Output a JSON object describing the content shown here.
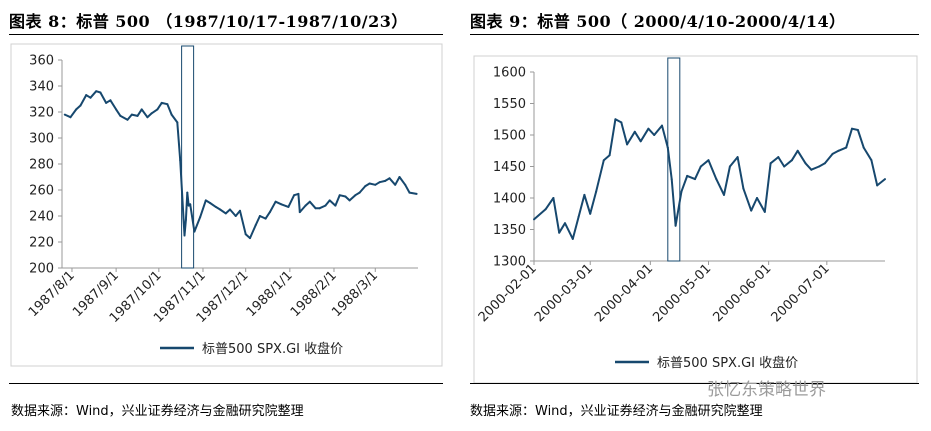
{
  "left": {
    "title": "图表 8：标普 500 （1987/10/17-1987/10/23）",
    "source": "数据来源：Wind，兴业证券经济与金融研究院整理"
  },
  "right": {
    "title": "图表 9：标普 500（ 2000/4/10-2000/4/14）",
    "source": "数据来源：Wind，兴业证券经济与金融研究院整理"
  },
  "watermark": "张忆东策略世界",
  "colors": {
    "line": "#17486e",
    "axis": "#999999",
    "frame": "#8aa0b4"
  },
  "chart_data": [
    {
      "type": "line",
      "title": "图表 8：标普 500 （1987/10/17-1987/10/23）",
      "x_ticks": [
        "1987/8/1",
        "1987/9/1",
        "1987/10/1",
        "1987/11/1",
        "1987/12/1",
        "1988/1/1",
        "1988/2/1",
        "1988/3/1"
      ],
      "xlim": [
        "1987/7/25",
        "1988/3/31"
      ],
      "ylim": [
        200,
        360
      ],
      "y_ticks": [
        200,
        220,
        240,
        260,
        280,
        300,
        320,
        340,
        360
      ],
      "grid": false,
      "legend": "bottom",
      "highlight": [
        "1987/10/17",
        "1987/10/23"
      ],
      "series": [
        {
          "name": "标普500 SPX.GI 收盘价",
          "x": [
            "1987/7/27",
            "1987/7/31",
            "1987/8/4",
            "1987/8/7",
            "1987/8/11",
            "1987/8/14",
            "1987/8/18",
            "1987/8/21",
            "1987/8/25",
            "1987/8/28",
            "1987/9/1",
            "1987/9/4",
            "1987/9/9",
            "1987/9/12",
            "1987/9/16",
            "1987/9/19",
            "1987/9/23",
            "1987/9/26",
            "1987/9/30",
            "1987/10/3",
            "1987/10/7",
            "1987/10/10",
            "1987/10/14",
            "1987/10/16",
            "1987/10/19",
            "1987/10/20",
            "1987/10/21",
            "1987/10/22",
            "1987/10/23",
            "1987/10/26",
            "1987/10/30",
            "1987/11/3",
            "1987/11/6",
            "1987/11/10",
            "1987/11/13",
            "1987/11/17",
            "1987/11/20",
            "1987/11/24",
            "1987/11/27",
            "1987/12/1",
            "1987/12/4",
            "1987/12/8",
            "1987/12/11",
            "1987/12/15",
            "1987/12/18",
            "1987/12/22",
            "1987/12/26",
            "1987/12/31",
            "1988/1/4",
            "1988/1/7",
            "1988/1/8",
            "1988/1/12",
            "1988/1/15",
            "1988/1/19",
            "1988/1/22",
            "1988/1/26",
            "1988/1/29",
            "1988/2/2",
            "1988/2/5",
            "1988/2/9",
            "1988/2/12",
            "1988/2/16",
            "1988/2/19",
            "1988/2/23",
            "1988/2/26",
            "1988/3/1",
            "1988/3/4",
            "1988/3/8",
            "1988/3/11",
            "1988/3/15",
            "1988/3/18",
            "1988/3/22",
            "1988/3/25",
            "1988/3/30"
          ],
          "values": [
            318,
            316,
            322,
            325,
            333,
            331,
            336,
            335,
            327,
            329,
            322,
            317,
            314,
            318,
            317,
            322,
            316,
            319,
            322,
            327,
            326,
            318,
            312,
            283,
            225,
            237,
            258,
            248,
            249,
            228,
            239,
            252,
            250,
            247,
            245,
            242,
            245,
            240,
            244,
            226,
            223,
            233,
            240,
            238,
            243,
            251,
            249,
            247,
            256,
            257,
            243,
            248,
            251,
            246,
            246,
            248,
            252,
            248,
            256,
            255,
            252,
            256,
            258,
            263,
            265,
            264,
            266,
            267,
            269,
            264,
            270,
            264,
            258,
            257
          ]
        }
      ]
    },
    {
      "type": "line",
      "title": "图表 9：标普 500（ 2000/4/10-2000/4/14）",
      "x_ticks": [
        "2000-02-01",
        "2000-03-01",
        "2000-04-01",
        "2000-05-01",
        "2000-06-01",
        "2000-07-01"
      ],
      "xlim": [
        "2000-02-01",
        "2000-07-31"
      ],
      "ylim": [
        1300,
        1600
      ],
      "y_ticks": [
        1300,
        1350,
        1400,
        1450,
        1500,
        1550,
        1600
      ],
      "grid": false,
      "legend": "bottom",
      "highlight": [
        "2000-04-10",
        "2000-04-14"
      ],
      "series": [
        {
          "name": "标普500 SPX.GI 收盘价",
          "x": [
            "2000-02-01",
            "2000-02-07",
            "2000-02-11",
            "2000-02-14",
            "2000-02-17",
            "2000-02-21",
            "2000-02-24",
            "2000-02-27",
            "2000-03-01",
            "2000-03-04",
            "2000-03-08",
            "2000-03-11",
            "2000-03-14",
            "2000-03-17",
            "2000-03-20",
            "2000-03-24",
            "2000-03-27",
            "2000-03-31",
            "2000-04-03",
            "2000-04-07",
            "2000-04-10",
            "2000-04-12",
            "2000-04-14",
            "2000-04-17",
            "2000-04-20",
            "2000-04-24",
            "2000-04-27",
            "2000-05-01",
            "2000-05-05",
            "2000-05-09",
            "2000-05-12",
            "2000-05-16",
            "2000-05-19",
            "2000-05-23",
            "2000-05-26",
            "2000-05-30",
            "2000-06-02",
            "2000-06-06",
            "2000-06-09",
            "2000-06-13",
            "2000-06-16",
            "2000-06-20",
            "2000-06-23",
            "2000-06-27",
            "2000-06-30",
            "2000-07-04",
            "2000-07-07",
            "2000-07-11",
            "2000-07-14",
            "2000-07-17",
            "2000-07-20",
            "2000-07-24",
            "2000-07-27",
            "2000-07-31"
          ],
          "values": [
            1366,
            1382,
            1400,
            1345,
            1360,
            1335,
            1370,
            1405,
            1375,
            1410,
            1460,
            1468,
            1525,
            1520,
            1485,
            1505,
            1490,
            1510,
            1500,
            1515,
            1480,
            1430,
            1356,
            1410,
            1435,
            1430,
            1450,
            1460,
            1430,
            1405,
            1450,
            1465,
            1415,
            1380,
            1400,
            1378,
            1455,
            1465,
            1450,
            1460,
            1475,
            1455,
            1445,
            1450,
            1455,
            1470,
            1475,
            1480,
            1510,
            1508,
            1480,
            1460,
            1420,
            1430
          ]
        }
      ]
    }
  ]
}
